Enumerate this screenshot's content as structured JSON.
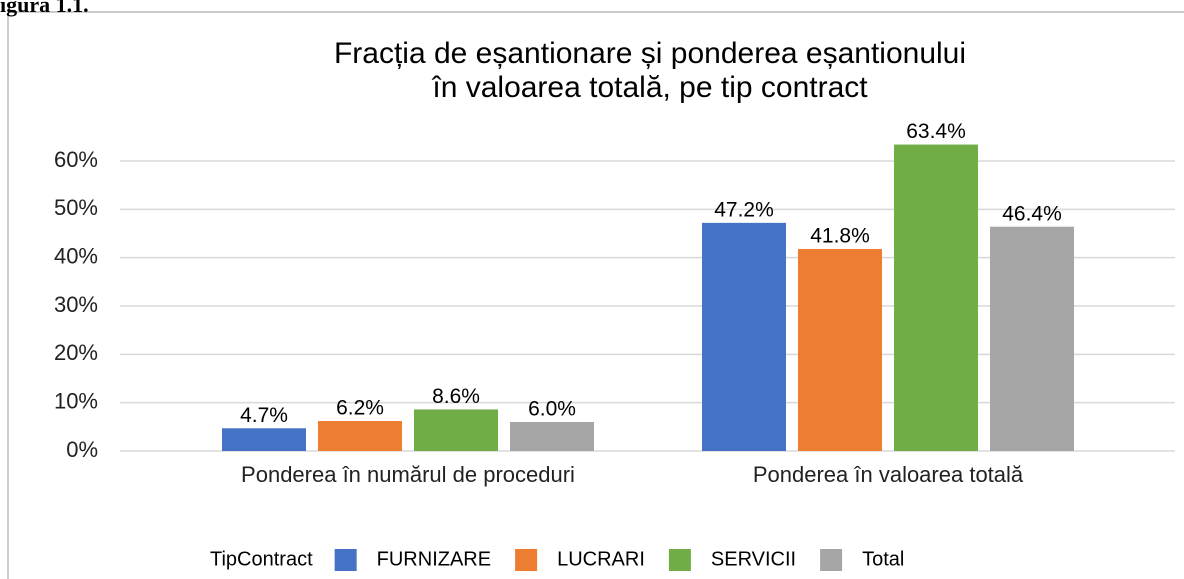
{
  "caption": "igura 1.1.",
  "chart_data": {
    "type": "bar",
    "title": "Fracția de eșantionare și ponderea eșantionului",
    "subtitle": "în valoarea totală, pe tip contract",
    "categories": [
      "Ponderea în numărul de proceduri",
      "Ponderea în valoarea totală"
    ],
    "legend_title": "TipContract",
    "legend": "bottom",
    "grid": true,
    "series": [
      {
        "name": "FURNIZARE",
        "color": "#4472c4",
        "values": [
          4.7,
          47.2
        ],
        "value_labels": [
          "4.7%",
          "47.2%"
        ]
      },
      {
        "name": "LUCRARI",
        "color": "#ed7d31",
        "values": [
          6.2,
          41.8
        ],
        "value_labels": [
          "6.2%",
          "41.8%"
        ]
      },
      {
        "name": "SERVICII",
        "color": "#70ad47",
        "values": [
          8.6,
          63.4
        ],
        "value_labels": [
          "8.6%",
          "63.4%"
        ]
      },
      {
        "name": "Total",
        "color": "#a5a5a5",
        "values": [
          6.0,
          46.4
        ],
        "value_labels": [
          "6.0%",
          "46.4%"
        ]
      }
    ],
    "ylim": [
      0,
      60
    ],
    "yticks": [
      {
        "value": 0,
        "label": "0%"
      },
      {
        "value": 10,
        "label": "10%"
      },
      {
        "value": 20,
        "label": "20%"
      },
      {
        "value": 30,
        "label": "30%"
      },
      {
        "value": 40,
        "label": "40%"
      },
      {
        "value": 50,
        "label": "50%"
      },
      {
        "value": 60,
        "label": "60%"
      }
    ]
  }
}
